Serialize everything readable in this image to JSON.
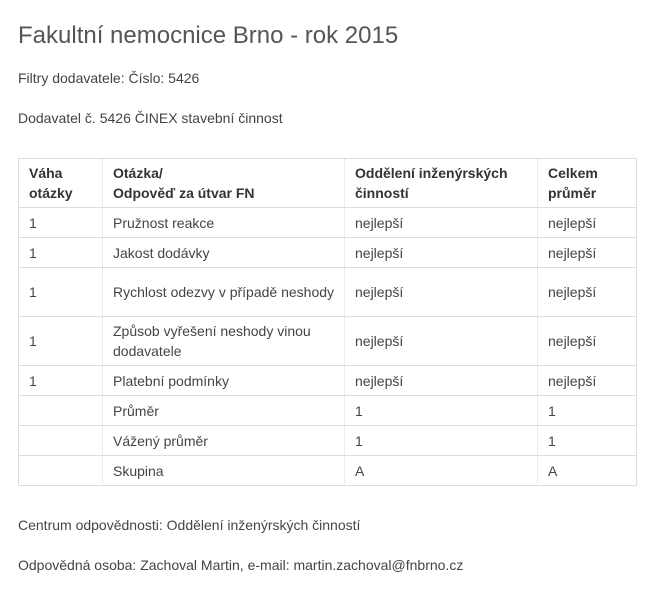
{
  "title": "Fakultní nemocnice Brno - rok 2015",
  "filter": "Filtry dodavatele: Číslo: 5426",
  "supplier": "Dodavatel č. 5426 ČINEX stavební činnost",
  "table": {
    "headers": [
      [
        "Váha",
        "otázky"
      ],
      [
        "Otázka/",
        "Odpověď za útvar FN"
      ],
      [
        "Oddělení inženýrských",
        "činností"
      ],
      [
        "Celkem",
        "průměr"
      ]
    ],
    "rows": [
      [
        "1",
        "Pružnost reakce",
        "nejlepší",
        "nejlepší"
      ],
      [
        "1",
        "Jakost dodávky",
        "nejlepší",
        "nejlepší"
      ],
      [
        "1",
        "Rychlost odezvy v případě neshody",
        "nejlepší",
        "nejlepší"
      ],
      [
        "1",
        "Způsob vyřešení neshody vinou dodavatele",
        "nejlepší",
        "nejlepší"
      ],
      [
        "1",
        "Platební podmínky",
        "nejlepší",
        "nejlepší"
      ],
      [
        "",
        "Průměr",
        "1",
        "1"
      ],
      [
        "",
        "Vážený průměr",
        "1",
        "1"
      ],
      [
        "",
        "Skupina",
        "A",
        "A"
      ]
    ]
  },
  "center": "Centrum odpovědnosti: Oddělení inženýrských činností",
  "person": "Odpovědná osoba: Zachoval Martin, e-mail: martin.zachoval@fnbrno.cz"
}
